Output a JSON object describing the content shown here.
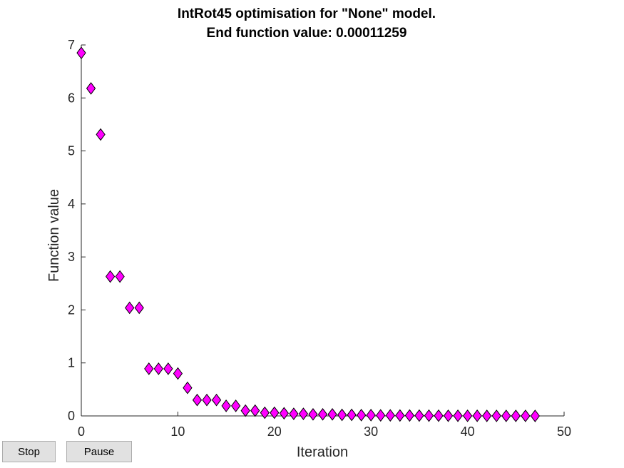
{
  "chart_data": {
    "type": "scatter",
    "title": [
      "IntRot45 optimisation for \"None\" model.",
      "End function value: 0.00011259"
    ],
    "xlabel": "Iteration",
    "ylabel": "Function value",
    "xlim": [
      0,
      50
    ],
    "ylim": [
      0,
      7
    ],
    "xticks": [
      0,
      10,
      20,
      30,
      40,
      50
    ],
    "yticks": [
      0,
      1,
      2,
      3,
      4,
      5,
      6,
      7
    ],
    "grid": false,
    "marker": "diamond",
    "marker_color": "#ff00ff",
    "marker_edge_color": "#000000",
    "x": [
      0,
      1,
      2,
      3,
      4,
      5,
      6,
      7,
      8,
      9,
      10,
      11,
      12,
      13,
      14,
      15,
      16,
      17,
      18,
      19,
      20,
      21,
      22,
      23,
      24,
      25,
      26,
      27,
      28,
      29,
      30,
      31,
      32,
      33,
      34,
      35,
      36,
      37,
      38,
      39,
      40,
      41,
      42,
      43,
      44,
      45,
      46,
      47
    ],
    "y": [
      6.85,
      6.18,
      5.31,
      2.63,
      2.63,
      2.04,
      2.04,
      0.89,
      0.89,
      0.89,
      0.8,
      0.53,
      0.3,
      0.3,
      0.3,
      0.19,
      0.19,
      0.1,
      0.1,
      0.06,
      0.06,
      0.05,
      0.04,
      0.04,
      0.03,
      0.03,
      0.03,
      0.02,
      0.02,
      0.015,
      0.015,
      0.01,
      0.01,
      0.008,
      0.008,
      0.006,
      0.005,
      0.004,
      0.003,
      0.003,
      0.002,
      0.002,
      0.001,
      0.001,
      0.0008,
      0.0006,
      0.0004,
      0.00011259
    ]
  },
  "controls": {
    "stop_label": "Stop",
    "pause_label": "Pause"
  }
}
